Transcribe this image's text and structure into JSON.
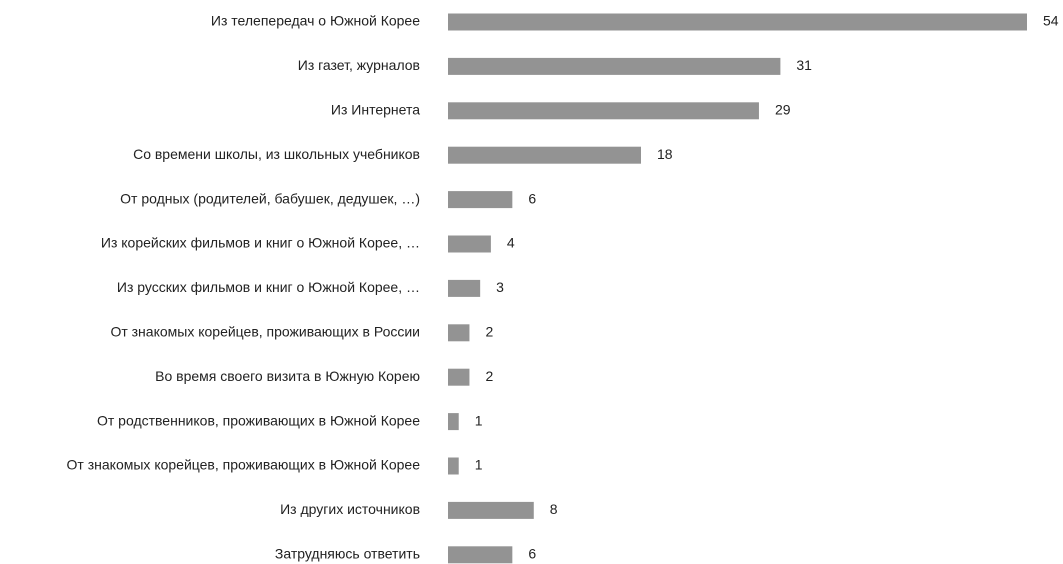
{
  "chart_data": {
    "type": "bar",
    "orientation": "horizontal",
    "color": "#939393",
    "categories": [
      "Из телепередач о Южной Корее",
      "Из газет, журналов",
      "Из Интернета",
      "Со времени школы, из школьных учебников",
      "От родных (родителей, бабушек, дедушек, …)",
      "Из корейских фильмов и книг о Южной Корее, …",
      "Из русских фильмов и книг о Южной Корее, …",
      "От знакомых корейцев, проживающих в России",
      "Во время своего визита в Южную Корею",
      "От родственников, проживающих в Южной Корее",
      "От знакомых корейцев, проживающих в Южной Корее",
      "Из других источников",
      "Затрудняюсь ответить"
    ],
    "values": [
      54,
      31,
      29,
      18,
      6,
      4,
      3,
      2,
      2,
      1,
      1,
      8,
      6
    ]
  }
}
